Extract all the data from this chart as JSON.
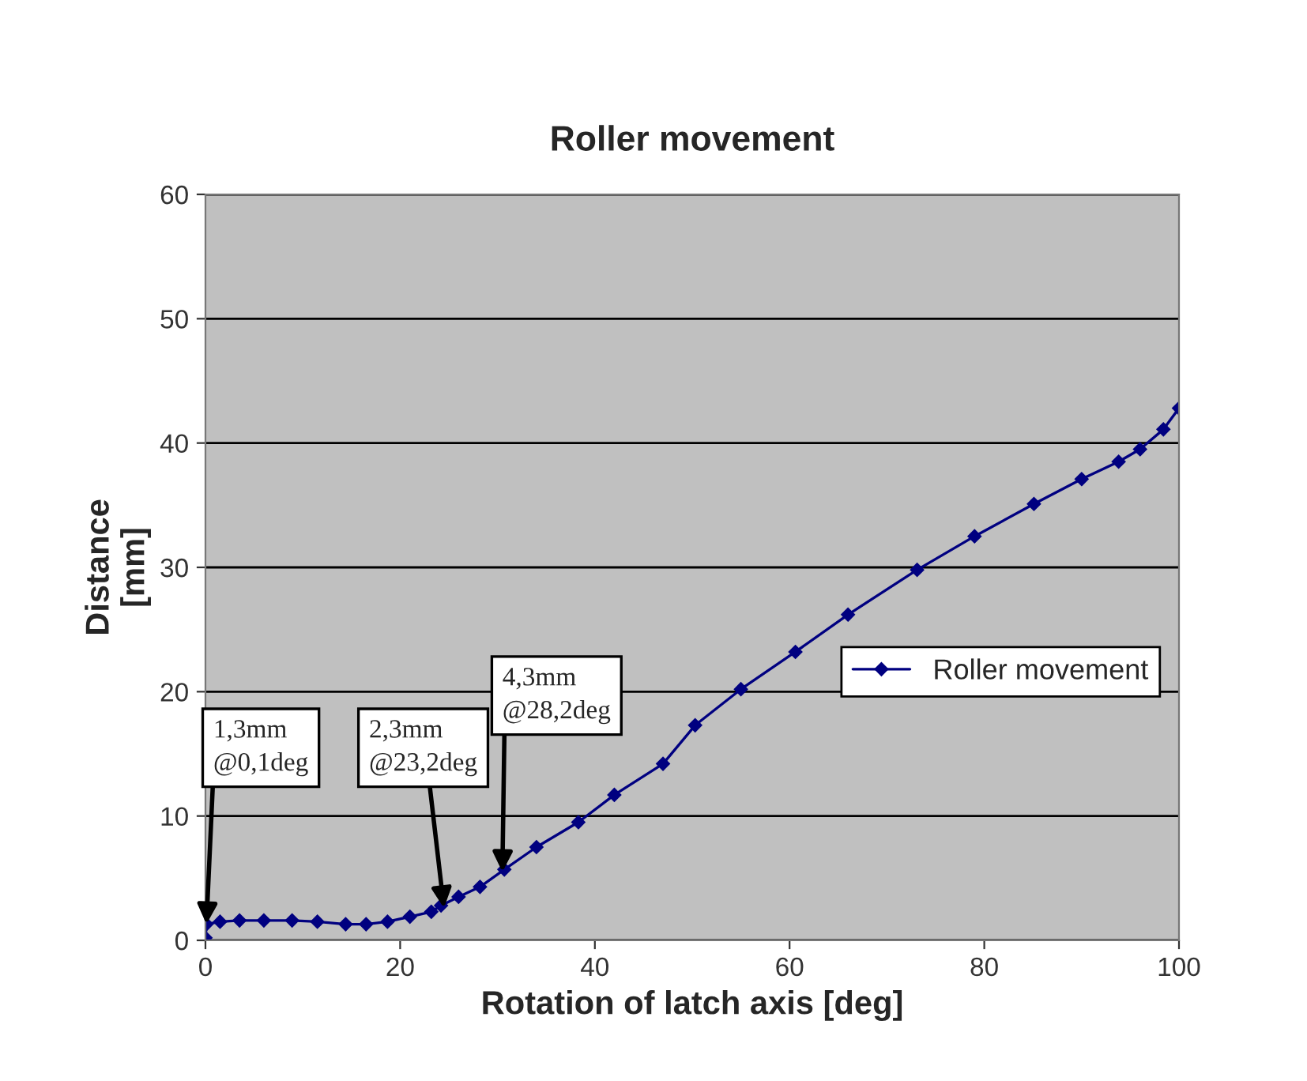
{
  "chart_data": {
    "type": "line",
    "title": "Roller movement",
    "xlabel": "Rotation of latch axis [deg]",
    "ylabel": "Distance\n[mm]",
    "xlim": [
      0,
      100
    ],
    "xticks": [
      0,
      20,
      40,
      60,
      80,
      100
    ],
    "ylim": [
      0,
      60
    ],
    "yticks": [
      0,
      10,
      20,
      30,
      40,
      50,
      60
    ],
    "grid": "y",
    "legend": "right",
    "marker": "diamond",
    "line_style": "solid",
    "series": [
      {
        "name": "Roller movement",
        "color": "#000080",
        "x": [
          0,
          0.1,
          1.5,
          3.5,
          6,
          8.9,
          11.5,
          14.4,
          16.5,
          18.7,
          21,
          23.2,
          24.2,
          26,
          28.2,
          30.7,
          34,
          38.3,
          42,
          47,
          50.3,
          55,
          60.6,
          66,
          73.1,
          79,
          85.1,
          90,
          93.8,
          96,
          98.4,
          100
        ],
        "values": [
          0.2,
          1.3,
          1.5,
          1.6,
          1.6,
          1.6,
          1.5,
          1.3,
          1.3,
          1.5,
          1.9,
          2.3,
          2.8,
          3.5,
          4.3,
          5.7,
          7.5,
          9.5,
          11.7,
          14.2,
          17.3,
          20.2,
          23.2,
          26.2,
          29.8,
          32.5,
          35.1,
          37.1,
          38.5,
          39.5,
          41.1,
          42.8
        ]
      }
    ],
    "annotations": [
      {
        "text": "1,3mm\n@0,1deg",
        "x": 0.1,
        "y": 1.3
      },
      {
        "text": "2,3mm\n@23,2deg",
        "x": 24.5,
        "y": 2.6
      },
      {
        "text": "4,3mm\n@28,2deg",
        "x": 30.5,
        "y": 5.5
      }
    ]
  }
}
